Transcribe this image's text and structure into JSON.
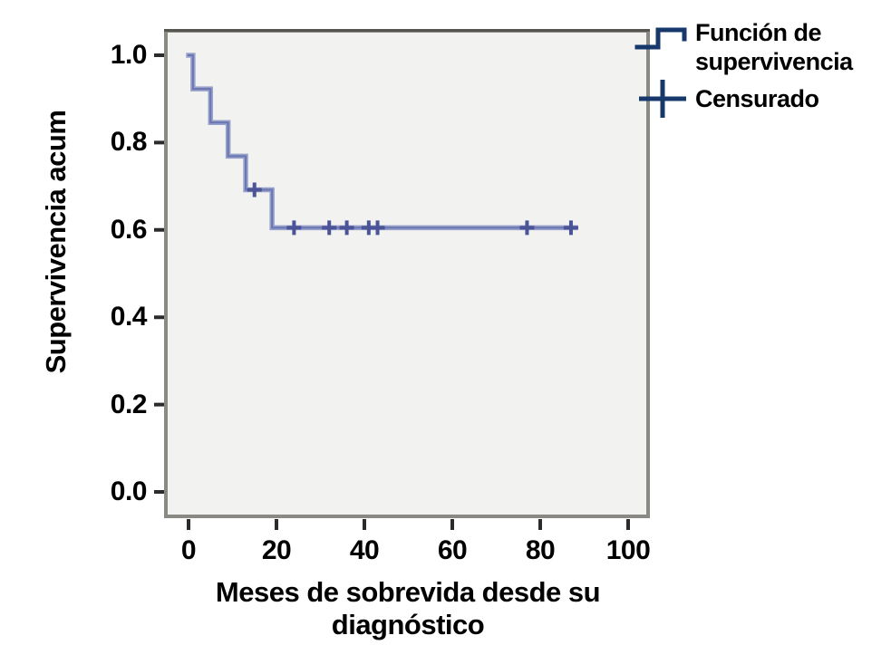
{
  "figure": {
    "y_axis_label": "Supervivencia acum",
    "x_axis_label": "Meses de sobrevida desde su diagnóstico",
    "legend": [
      {
        "symbol": "survival-step-line",
        "label": "Función de supervivencia"
      },
      {
        "symbol": "censored-plus",
        "label": "Censurado"
      }
    ]
  },
  "chart_data": {
    "type": "line",
    "subtype": "kaplan-meier-step",
    "title": "",
    "xlabel": "Meses de sobrevida desde su diagnóstico",
    "ylabel": "Supervivencia acum",
    "xlim": [
      0,
      100
    ],
    "ylim": [
      0.0,
      1.0
    ],
    "xticks": [
      0,
      20,
      40,
      60,
      80,
      100
    ],
    "yticks": [
      1.0,
      0.8,
      0.6,
      0.4,
      0.2,
      0.0
    ],
    "xtick_labels": [
      "0",
      "20",
      "40",
      "60",
      "80",
      "100"
    ],
    "ytick_labels": [
      "1.0",
      "0.8",
      "0.6",
      "0.4",
      "0.2",
      "0.0"
    ],
    "grid": false,
    "legend_position": "top-right-outside",
    "series": [
      {
        "name": "Función de supervivencia",
        "steps": [
          {
            "t": 0,
            "s": 1.0
          },
          {
            "t": 1,
            "s": 0.923
          },
          {
            "t": 5,
            "s": 0.846
          },
          {
            "t": 9,
            "s": 0.769
          },
          {
            "t": 13,
            "s": 0.692
          },
          {
            "t": 19,
            "s": 0.605
          }
        ],
        "line_end_t": 88
      }
    ],
    "censored": [
      {
        "t": 15,
        "s": 0.692
      },
      {
        "t": 24,
        "s": 0.605
      },
      {
        "t": 32,
        "s": 0.605
      },
      {
        "t": 36,
        "s": 0.605
      },
      {
        "t": 41,
        "s": 0.605
      },
      {
        "t": 43,
        "s": 0.605
      },
      {
        "t": 77,
        "s": 0.605
      },
      {
        "t": 87,
        "s": 0.605
      }
    ],
    "colors": {
      "survival_line": "#98a1cc",
      "survival_line_core": "#6a76b1",
      "censor_mark": "#4a5496",
      "legend_symbol": "#16386b",
      "plot_background": "#f2f2f0",
      "plot_border": "#8b8983",
      "plot_border_top": "#57554f",
      "tick": "#2b2b2b",
      "text": "#000000"
    }
  }
}
